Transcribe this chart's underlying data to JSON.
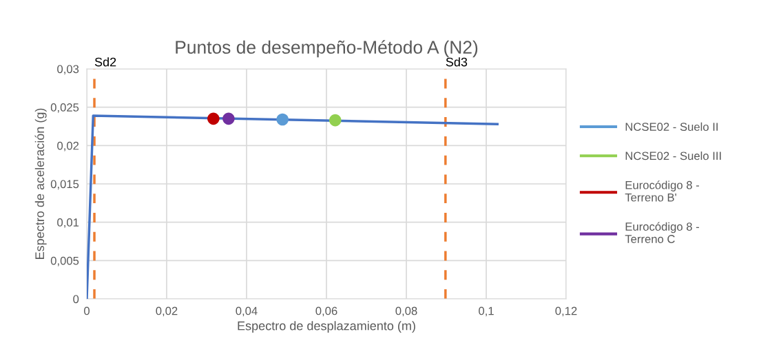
{
  "chart_data": {
    "type": "line",
    "title": "Puntos de desempeño-Método A (N2)",
    "xlabel": "Espectro de desplazamiento (m)",
    "ylabel": "Espectro de aceleración (g)",
    "xlim": [
      0,
      0.12
    ],
    "xticks": [
      {
        "value": 0,
        "label": "0"
      },
      {
        "value": 0.02,
        "label": "0,02"
      },
      {
        "value": 0.04,
        "label": "0,04"
      },
      {
        "value": 0.06,
        "label": "0,06"
      },
      {
        "value": 0.08,
        "label": "0,08"
      },
      {
        "value": 0.1,
        "label": "0,1"
      },
      {
        "value": 0.12,
        "label": "0,12"
      }
    ],
    "ylim": [
      0,
      0.03
    ],
    "yticks": [
      {
        "value": 0,
        "label": "0"
      },
      {
        "value": 0.005,
        "label": "0,005"
      },
      {
        "value": 0.01,
        "label": "0,01"
      },
      {
        "value": 0.015,
        "label": "0,015"
      },
      {
        "value": 0.02,
        "label": "0,02"
      },
      {
        "value": 0.025,
        "label": "0,025"
      },
      {
        "value": 0.03,
        "label": "0,03"
      }
    ],
    "grid": true,
    "legend": "right",
    "series": [
      {
        "color": "#4472c4",
        "x": [
          0,
          0.0016,
          0.1028
        ],
        "values": [
          0,
          0.0239,
          0.0228
        ],
        "marker": "none"
      },
      {
        "type": "scatter",
        "name": "NCSE02 - Suelo II",
        "color": "#5b9bd5",
        "x": [
          0.049
        ],
        "values": [
          0.0234
        ],
        "marker": "circle"
      },
      {
        "type": "scatter",
        "name": "NCSE02 - Suelo III",
        "color": "#92d050",
        "x": [
          0.0622
        ],
        "values": [
          0.0233
        ],
        "marker": "circle"
      },
      {
        "type": "scatter",
        "name": "Eurocódigo 8 - Terreno B'",
        "color": "#c00000",
        "x": [
          0.0317
        ],
        "values": [
          0.0235
        ],
        "marker": "circle"
      },
      {
        "type": "scatter",
        "name": "Eurocódigo 8 - Terreno C",
        "color": "#7030a0",
        "x": [
          0.0355
        ],
        "values": [
          0.0235
        ],
        "marker": "circle"
      }
    ],
    "ref_lines": [
      {
        "axis": "x",
        "value": 0.0019,
        "label": "Sd2",
        "color": "#ed7d31",
        "line_style": "dashed"
      },
      {
        "axis": "x",
        "value": 0.0898,
        "label": "Sd3",
        "color": "#ed7d31",
        "line_style": "dashed"
      }
    ]
  }
}
